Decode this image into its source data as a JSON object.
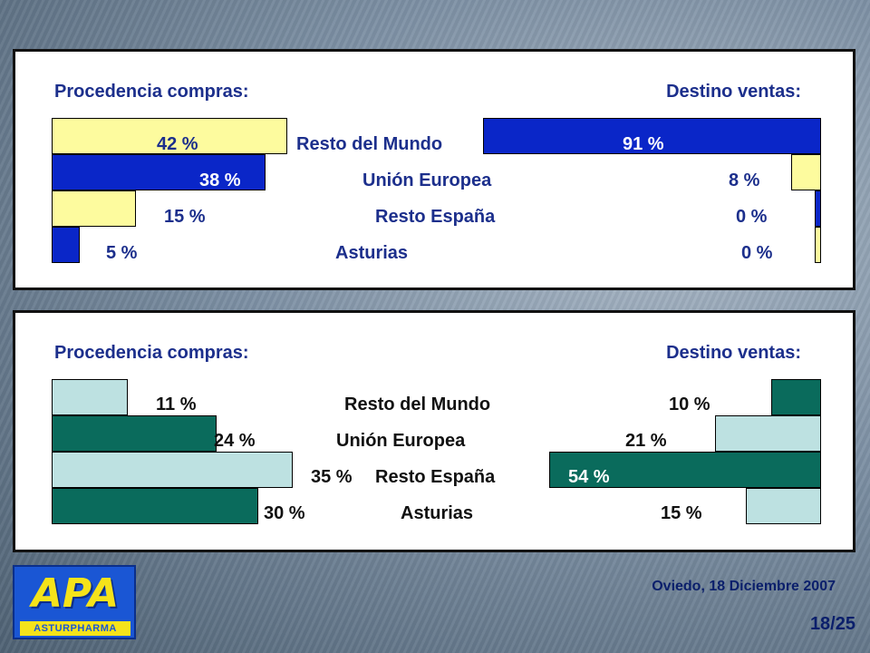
{
  "colors": {
    "blue_bar": "#0a26c8",
    "yellow_bar": "#fdfb9e",
    "teal_bar": "#0a6b5c",
    "light_teal_bar": "#bde1e1",
    "label_blue": "#1c2f8c"
  },
  "chart_data": [
    {
      "type": "bar",
      "orientation": "horizontal-mirrored",
      "left_title": "Procedencia compras:",
      "right_title": "Destino ventas:",
      "categories": [
        "Resto del Mundo",
        "Unión Europea",
        "Resto España",
        "Asturias"
      ],
      "series": [
        {
          "values": [
            42,
            38,
            15,
            5
          ],
          "value_labels": [
            "42 %",
            "38 %",
            "15 %",
            "5 %"
          ],
          "colors": [
            "#fdfb9e",
            "#0a26c8",
            "#fdfb9e",
            "#0a26c8"
          ]
        },
        {
          "values": [
            91,
            8,
            0,
            0
          ],
          "value_labels": [
            "91 %",
            "8 %",
            "0 %",
            "0 %"
          ],
          "colors": [
            "#0a26c8",
            "#fdfb9e",
            "#0a26c8",
            "#fdfb9e"
          ]
        }
      ]
    },
    {
      "type": "bar",
      "orientation": "horizontal-mirrored",
      "left_title": "Procedencia compras:",
      "right_title": "Destino ventas:",
      "categories": [
        "Resto del Mundo",
        "Unión Europea",
        "Resto España",
        "Asturias"
      ],
      "series": [
        {
          "values": [
            11,
            24,
            35,
            30
          ],
          "value_labels": [
            "11 %",
            "24 %",
            "35 %",
            "30 %"
          ],
          "colors": [
            "#bde1e1",
            "#0a6b5c",
            "#bde1e1",
            "#0a6b5c"
          ]
        },
        {
          "values": [
            10,
            21,
            54,
            15
          ],
          "value_labels": [
            "10 %",
            "21 %",
            "54 %",
            "15 %"
          ],
          "colors": [
            "#0a6b5c",
            "#bde1e1",
            "#0a6b5c",
            "#bde1e1"
          ]
        }
      ]
    }
  ],
  "logo": {
    "mark": "APA",
    "subtitle": "ASTURPHARMA"
  },
  "footer": {
    "date": "Oviedo, 18 Diciembre 2007",
    "page": "18/25"
  }
}
